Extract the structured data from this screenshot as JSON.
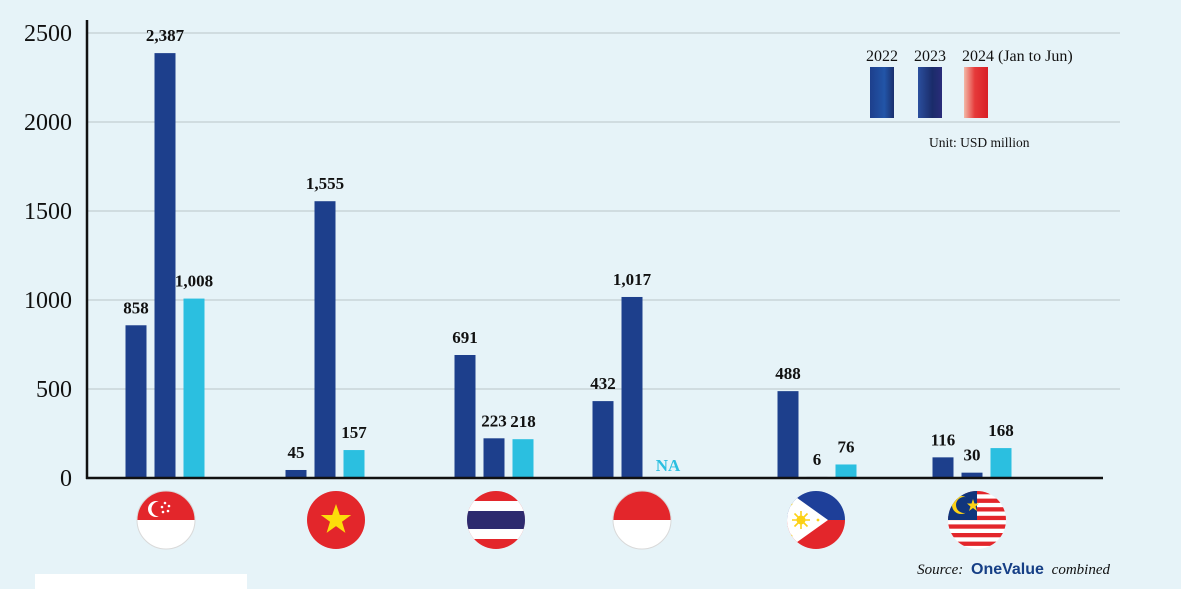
{
  "chart_data": {
    "type": "bar",
    "categories": [
      "Singapore",
      "Vietnam",
      "Thailand",
      "Indonesia",
      "Philippines",
      "Malaysia"
    ],
    "series": [
      {
        "name": "2022",
        "values": [
          858,
          45,
          691,
          432,
          488,
          116
        ],
        "labels": [
          "858",
          "45",
          "691",
          "432",
          "488",
          "116"
        ]
      },
      {
        "name": "2023",
        "values": [
          2387,
          1555,
          223,
          1017,
          6,
          30
        ],
        "labels": [
          "2,387",
          "1,555",
          "223",
          "1,017",
          "6",
          "30"
        ]
      },
      {
        "name": "2024 (Jan to Jun)",
        "values": [
          1008,
          157,
          218,
          null,
          76,
          168
        ],
        "labels": [
          "1,008",
          "157",
          "218",
          "NA",
          "76",
          "168"
        ]
      }
    ],
    "yticks": [
      "0",
      "500",
      "1000",
      "1500",
      "2000",
      "2500"
    ],
    "ylim": [
      0,
      2500
    ],
    "grid": true,
    "legend_position": "top-right",
    "unit": "Unit: USD million",
    "colors": {
      "2022": "#1d3f8c",
      "2023": "#1d3f8c",
      "2024 (Jan to Jun)": "#2bbfe0",
      "grid": "#c2cdd2",
      "axis": "#111111",
      "na": "#2bbfe0"
    }
  },
  "flags": [
    "singapore-flag",
    "vietnam-flag",
    "thailand-flag",
    "indonesia-flag",
    "philippines-flag",
    "malaysia-flag"
  ],
  "source": {
    "prefix": "Source:",
    "brand": "OneValue",
    "suffix": "combined"
  }
}
